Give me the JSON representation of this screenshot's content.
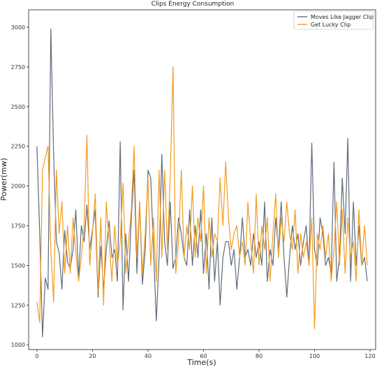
{
  "chart_data": {
    "type": "line",
    "title": "Clips Energy Consumption",
    "xlabel": "Time(s)",
    "ylabel": "Power(mw)",
    "xlim": [
      -3,
      122
    ],
    "ylim": [
      970,
      3110
    ],
    "xticks": [
      0,
      20,
      40,
      60,
      80,
      100,
      120
    ],
    "yticks": [
      1000,
      1250,
      1500,
      1750,
      2000,
      2250,
      2500,
      2750,
      3000
    ],
    "grid": false,
    "legend_position": "top-right",
    "series": [
      {
        "name": "Moves Like Jagger Clip",
        "color": "#5f6b7a",
        "x": [
          0,
          1,
          2,
          3,
          4,
          5,
          6,
          7,
          8,
          9,
          10,
          11,
          12,
          13,
          14,
          15,
          16,
          17,
          18,
          19,
          20,
          21,
          22,
          23,
          24,
          25,
          26,
          27,
          28,
          29,
          30,
          31,
          32,
          33,
          34,
          35,
          36,
          37,
          38,
          39,
          40,
          41,
          42,
          43,
          44,
          45,
          46,
          47,
          48,
          49,
          50,
          51,
          52,
          53,
          54,
          55,
          56,
          57,
          58,
          59,
          60,
          61,
          62,
          63,
          64,
          65,
          66,
          67,
          68,
          69,
          70,
          71,
          72,
          73,
          74,
          75,
          76,
          77,
          78,
          79,
          80,
          81,
          82,
          83,
          84,
          85,
          86,
          87,
          88,
          89,
          90,
          91,
          92,
          93,
          94,
          95,
          96,
          97,
          98,
          99,
          100,
          101,
          102,
          103,
          104,
          105,
          106,
          107,
          108,
          109,
          110,
          111,
          112,
          113,
          114,
          115,
          116,
          117,
          118,
          119
        ],
        "y": [
          2250,
          1700,
          1050,
          1420,
          1350,
          2990,
          2200,
          1650,
          1580,
          1350,
          1720,
          1520,
          1480,
          1600,
          1850,
          1420,
          1750,
          1650,
          1880,
          1600,
          1720,
          1850,
          1300,
          1620,
          1350,
          1600,
          1780,
          1550,
          1600,
          1400,
          2280,
          1220,
          1700,
          1400,
          1800,
          2100,
          1450,
          1900,
          1380,
          1600,
          2100,
          2050,
          1600,
          1150,
          1550,
          2200,
          1650,
          1500,
          1900,
          1480,
          1550,
          1800,
          1700,
          1550,
          1500,
          1850,
          1500,
          1750,
          1550,
          1850,
          1450,
          1700,
          1350,
          1800,
          1400,
          1650,
          1250,
          1550,
          1650,
          1650,
          1500,
          1600,
          1350,
          1550,
          1800,
          1550,
          1600,
          1500,
          1700,
          1550,
          1650,
          1500,
          1900,
          1400,
          1600,
          1500,
          1800,
          1600,
          1900,
          1550,
          1300,
          1550,
          1750,
          1600,
          1700,
          1500,
          1650,
          1750,
          1500,
          2270,
          1600,
          1500,
          1800,
          1700,
          1500,
          1550,
          1450,
          2150,
          1400,
          1550,
          2050,
          1700,
          2300,
          1400,
          1900,
          1500,
          1750,
          1500,
          1550,
          1400
        ]
      },
      {
        "name": "Get Lucky Clip",
        "color": "#f39c1f",
        "x": [
          0,
          1,
          2,
          3,
          4,
          5,
          6,
          7,
          8,
          9,
          10,
          11,
          12,
          13,
          14,
          15,
          16,
          17,
          18,
          19,
          20,
          21,
          22,
          23,
          24,
          25,
          26,
          27,
          28,
          29,
          30,
          31,
          32,
          33,
          34,
          35,
          36,
          37,
          38,
          39,
          40,
          41,
          42,
          43,
          44,
          45,
          46,
          47,
          48,
          49,
          50,
          51,
          52,
          53,
          54,
          55,
          56,
          57,
          58,
          59,
          60,
          61,
          62,
          63,
          64,
          65,
          66,
          67,
          68,
          69,
          70,
          71,
          72,
          73,
          74,
          75,
          76,
          77,
          78,
          79,
          80,
          81,
          82,
          83,
          84,
          85,
          86,
          87,
          88,
          89,
          90,
          91,
          92,
          93,
          94,
          95,
          96,
          97,
          98,
          99,
          100,
          101,
          102,
          103,
          104,
          105,
          106,
          107,
          108,
          109,
          110,
          111,
          112,
          113,
          114,
          115,
          116,
          117,
          118,
          119
        ],
        "y": [
          1270,
          1140,
          2100,
          2180,
          2250,
          1600,
          1270,
          2100,
          1700,
          1900,
          1450,
          1750,
          1450,
          1800,
          1580,
          1400,
          1550,
          1750,
          2320,
          1500,
          1700,
          1950,
          1330,
          1800,
          1250,
          1900,
          1650,
          1400,
          1750,
          1500,
          1650,
          2020,
          1450,
          1650,
          1850,
          2250,
          1550,
          1900,
          1450,
          1700,
          2050,
          1500,
          1800,
          1400,
          2100,
          1550,
          2100,
          1600,
          2050,
          2750,
          1450,
          1650,
          2100,
          1550,
          1750,
          1600,
          2000,
          1550,
          1800,
          1650,
          2000,
          1450,
          1800,
          1550,
          1700,
          1650,
          2050,
          1750,
          2150,
          1800,
          1600,
          1700,
          1750,
          1550,
          1650,
          1500,
          1900,
          1650,
          1450,
          1950,
          1500,
          1750,
          1600,
          1800,
          1400,
          1700,
          1950,
          1550,
          1800,
          1650,
          1900,
          1700,
          1600,
          1850,
          1450,
          1700,
          1550,
          1650,
          1500,
          1800,
          1100,
          1700,
          1600,
          1750,
          1550,
          1700,
          1400,
          1600,
          1900,
          1500,
          1850,
          1450,
          1800,
          1550,
          1650,
          1400,
          1850,
          1500,
          1750,
          1500
        ]
      }
    ]
  }
}
